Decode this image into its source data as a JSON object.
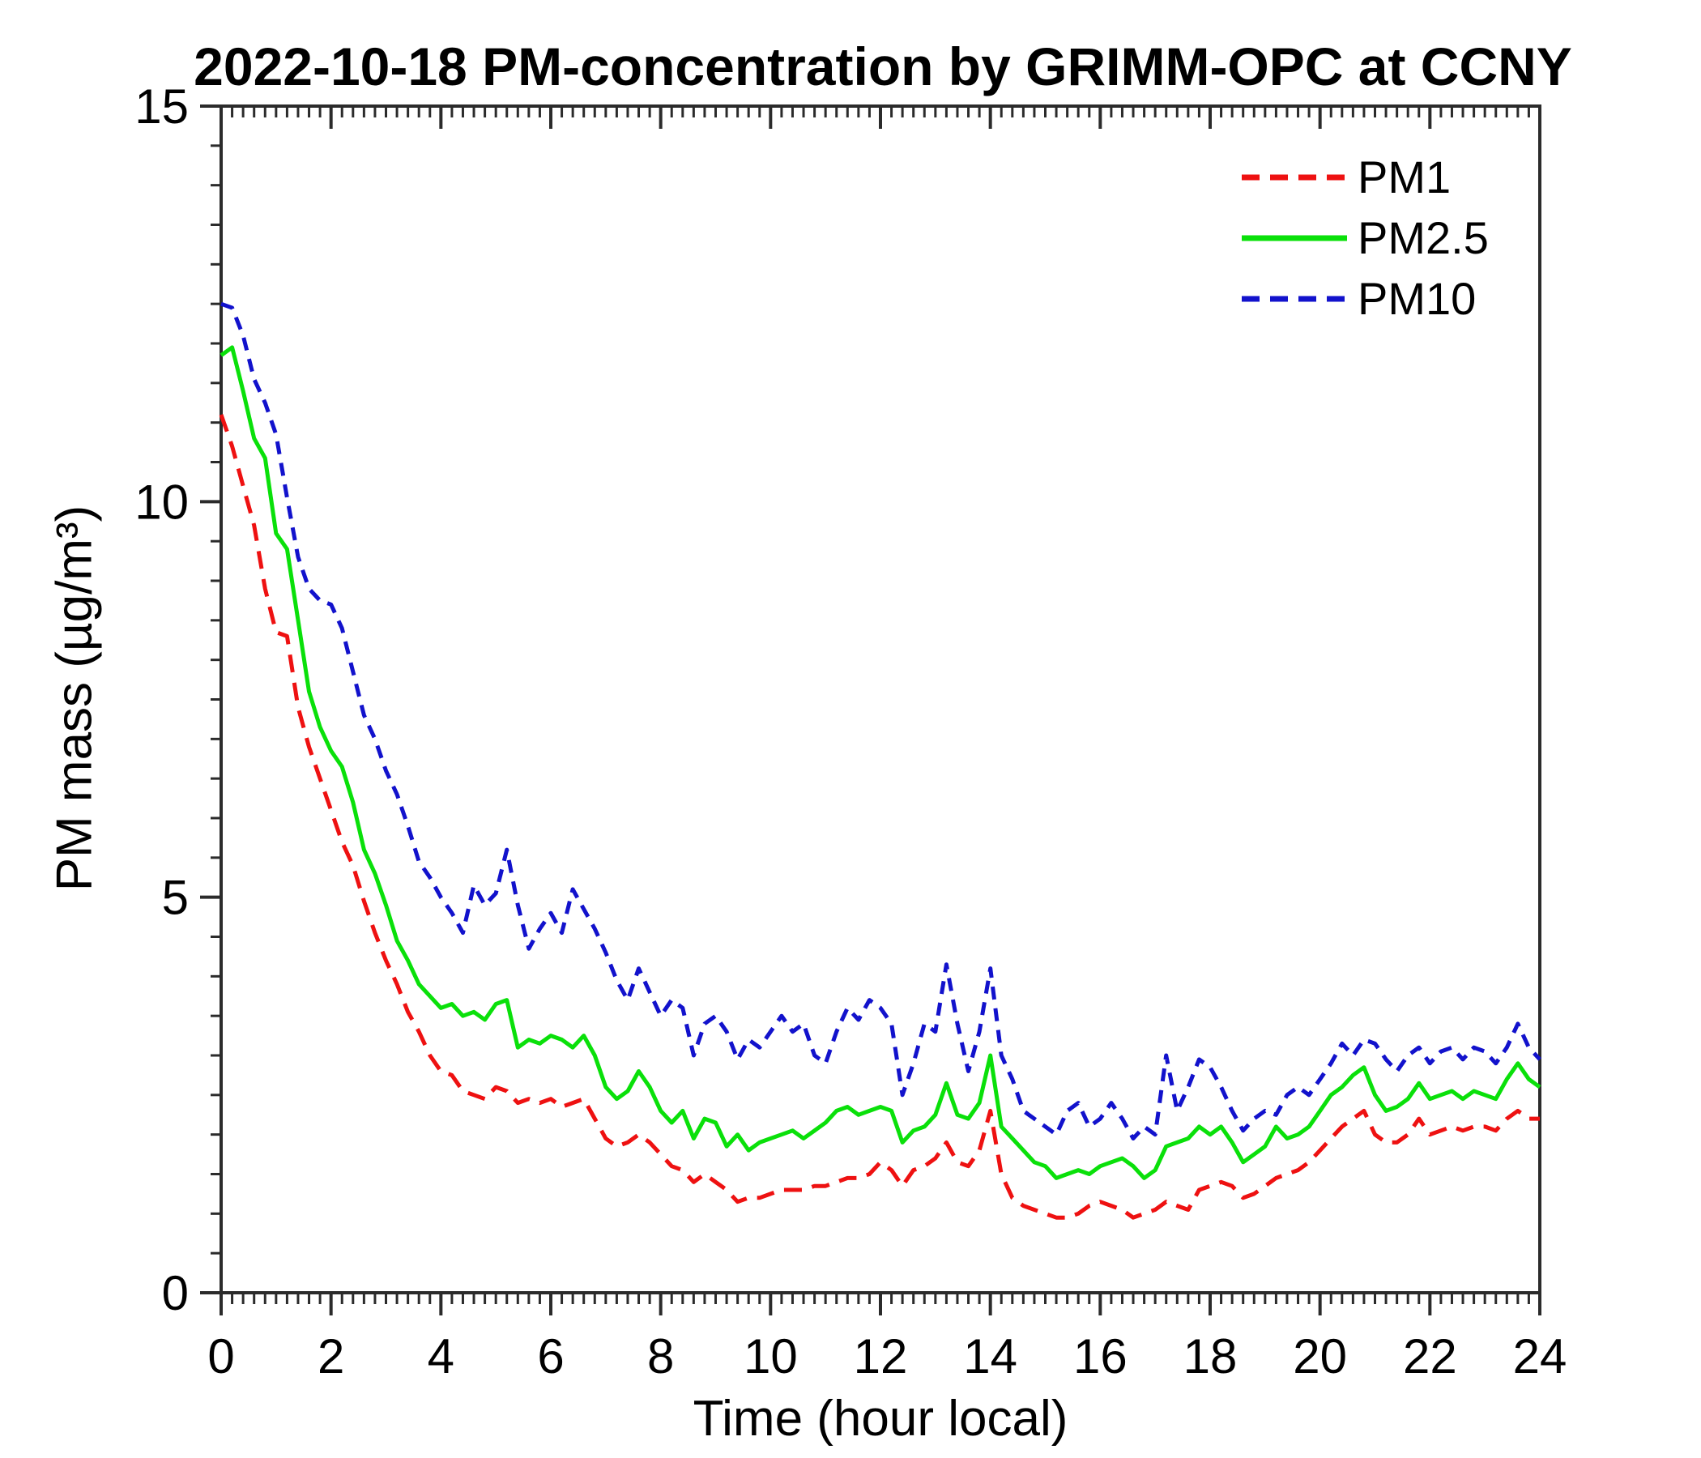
{
  "chart_data": {
    "type": "line",
    "title": "2022-10-18 PM-concentration by GRIMM-OPC at CCNY",
    "xlabel": "Time (hour local)",
    "ylabel": "PM mass (µg/m³)",
    "xlim": [
      0,
      24
    ],
    "ylim": [
      0,
      15
    ],
    "xticks": [
      "0",
      "2",
      "4",
      "6",
      "8",
      "10",
      "12",
      "14",
      "16",
      "18",
      "20",
      "22",
      "24"
    ],
    "yticks": [
      "0",
      "5",
      "10",
      "15"
    ],
    "x_major_step": 2,
    "x_minor_step": 0.2,
    "y_major_step": 5,
    "y_minor_step": 0.5,
    "grid": false,
    "legend_position": "upper right",
    "axis_color": "#2b2b2b",
    "x": [
      0,
      0.2,
      0.4,
      0.6,
      0.8,
      1,
      1.2,
      1.4,
      1.6,
      1.8,
      2,
      2.2,
      2.4,
      2.6,
      2.8,
      3,
      3.2,
      3.4,
      3.6,
      3.8,
      4,
      4.2,
      4.4,
      4.6,
      4.8,
      5,
      5.2,
      5.4,
      5.6,
      5.8,
      6,
      6.2,
      6.4,
      6.6,
      6.8,
      7,
      7.2,
      7.4,
      7.6,
      7.8,
      8,
      8.2,
      8.4,
      8.6,
      8.8,
      9,
      9.2,
      9.4,
      9.6,
      9.8,
      10,
      10.2,
      10.4,
      10.6,
      10.8,
      11,
      11.2,
      11.4,
      11.6,
      11.8,
      12,
      12.2,
      12.4,
      12.6,
      12.8,
      13,
      13.2,
      13.4,
      13.6,
      13.8,
      14,
      14.2,
      14.4,
      14.6,
      14.8,
      15,
      15.2,
      15.4,
      15.6,
      15.8,
      16,
      16.2,
      16.4,
      16.6,
      16.8,
      17,
      17.2,
      17.4,
      17.6,
      17.8,
      18,
      18.2,
      18.4,
      18.6,
      18.8,
      19,
      19.2,
      19.4,
      19.6,
      19.8,
      20,
      20.2,
      20.4,
      20.6,
      20.8,
      21,
      21.2,
      21.4,
      21.6,
      21.8,
      22,
      22.2,
      22.4,
      22.6,
      22.8,
      23,
      23.2,
      23.4,
      23.6,
      23.8,
      24
    ],
    "series": [
      {
        "name": "PM1",
        "color": "#ee1111",
        "line_style": "dashed",
        "values": [
          11.1,
          10.7,
          10.2,
          9.7,
          8.9,
          8.35,
          8.3,
          7.4,
          6.9,
          6.5,
          6.1,
          5.7,
          5.4,
          4.95,
          4.55,
          4.2,
          3.9,
          3.55,
          3.3,
          3.0,
          2.8,
          2.75,
          2.55,
          2.5,
          2.45,
          2.6,
          2.55,
          2.4,
          2.45,
          2.4,
          2.45,
          2.35,
          2.4,
          2.45,
          2.2,
          1.95,
          1.85,
          1.9,
          2.0,
          1.9,
          1.75,
          1.6,
          1.55,
          1.4,
          1.5,
          1.4,
          1.3,
          1.15,
          1.2,
          1.2,
          1.25,
          1.3,
          1.3,
          1.3,
          1.35,
          1.35,
          1.4,
          1.45,
          1.45,
          1.5,
          1.65,
          1.55,
          1.35,
          1.55,
          1.6,
          1.7,
          1.9,
          1.65,
          1.6,
          1.8,
          2.3,
          1.5,
          1.2,
          1.1,
          1.05,
          1.0,
          0.95,
          0.95,
          1.0,
          1.1,
          1.15,
          1.1,
          1.05,
          0.95,
          1.0,
          1.05,
          1.15,
          1.1,
          1.05,
          1.3,
          1.35,
          1.4,
          1.35,
          1.2,
          1.25,
          1.35,
          1.45,
          1.5,
          1.55,
          1.65,
          1.8,
          1.95,
          2.1,
          2.2,
          2.3,
          2.0,
          1.9,
          1.9,
          2.0,
          2.2,
          2.0,
          2.05,
          2.1,
          2.05,
          2.1,
          2.1,
          2.05,
          2.2,
          2.3,
          2.2,
          2.2
        ]
      },
      {
        "name": "PM2.5",
        "color": "#0ae00a",
        "line_style": "solid",
        "values": [
          11.85,
          11.95,
          11.4,
          10.8,
          10.55,
          9.6,
          9.4,
          8.5,
          7.6,
          7.15,
          6.85,
          6.65,
          6.2,
          5.6,
          5.3,
          4.9,
          4.45,
          4.2,
          3.9,
          3.75,
          3.6,
          3.65,
          3.5,
          3.55,
          3.45,
          3.65,
          3.7,
          3.1,
          3.2,
          3.15,
          3.25,
          3.2,
          3.1,
          3.25,
          3.0,
          2.6,
          2.45,
          2.55,
          2.8,
          2.6,
          2.3,
          2.15,
          2.3,
          1.95,
          2.2,
          2.15,
          1.85,
          2.0,
          1.8,
          1.9,
          1.95,
          2.0,
          2.05,
          1.95,
          2.05,
          2.15,
          2.3,
          2.35,
          2.25,
          2.3,
          2.35,
          2.3,
          1.9,
          2.05,
          2.1,
          2.25,
          2.65,
          2.25,
          2.2,
          2.4,
          3.0,
          2.1,
          1.95,
          1.8,
          1.65,
          1.6,
          1.45,
          1.5,
          1.55,
          1.5,
          1.6,
          1.65,
          1.7,
          1.6,
          1.45,
          1.55,
          1.85,
          1.9,
          1.95,
          2.1,
          2.0,
          2.1,
          1.9,
          1.65,
          1.75,
          1.85,
          2.1,
          1.95,
          2.0,
          2.1,
          2.3,
          2.5,
          2.6,
          2.75,
          2.85,
          2.5,
          2.3,
          2.35,
          2.45,
          2.65,
          2.45,
          2.5,
          2.55,
          2.45,
          2.55,
          2.5,
          2.45,
          2.7,
          2.9,
          2.7,
          2.6
        ]
      },
      {
        "name": "PM10",
        "color": "#1212cc",
        "line_style": "dashed",
        "values": [
          12.5,
          12.45,
          12.1,
          11.55,
          11.25,
          10.85,
          10.05,
          9.3,
          8.9,
          8.75,
          8.7,
          8.4,
          7.85,
          7.3,
          7.0,
          6.6,
          6.3,
          5.9,
          5.45,
          5.25,
          5.0,
          4.8,
          4.55,
          5.15,
          4.9,
          5.05,
          5.6,
          4.9,
          4.35,
          4.6,
          4.8,
          4.55,
          5.1,
          4.85,
          4.6,
          4.3,
          3.95,
          3.7,
          4.1,
          3.8,
          3.5,
          3.7,
          3.6,
          3.0,
          3.4,
          3.5,
          3.3,
          2.95,
          3.2,
          3.1,
          3.3,
          3.5,
          3.3,
          3.4,
          3.0,
          2.9,
          3.3,
          3.6,
          3.45,
          3.7,
          3.6,
          3.4,
          2.5,
          2.9,
          3.4,
          3.3,
          4.15,
          3.4,
          2.8,
          3.3,
          4.1,
          3.0,
          2.7,
          2.3,
          2.2,
          2.1,
          2.0,
          2.3,
          2.4,
          2.1,
          2.2,
          2.4,
          2.2,
          1.95,
          2.1,
          2.0,
          3.0,
          2.3,
          2.6,
          2.95,
          2.85,
          2.6,
          2.3,
          2.05,
          2.2,
          2.3,
          2.25,
          2.5,
          2.6,
          2.5,
          2.7,
          2.9,
          3.15,
          3.0,
          3.2,
          3.15,
          2.95,
          2.8,
          3.0,
          3.1,
          2.9,
          3.05,
          3.1,
          2.95,
          3.1,
          3.05,
          2.9,
          3.1,
          3.4,
          3.1,
          2.95
        ]
      }
    ],
    "legend": [
      "PM1",
      "PM2.5",
      "PM10"
    ]
  }
}
